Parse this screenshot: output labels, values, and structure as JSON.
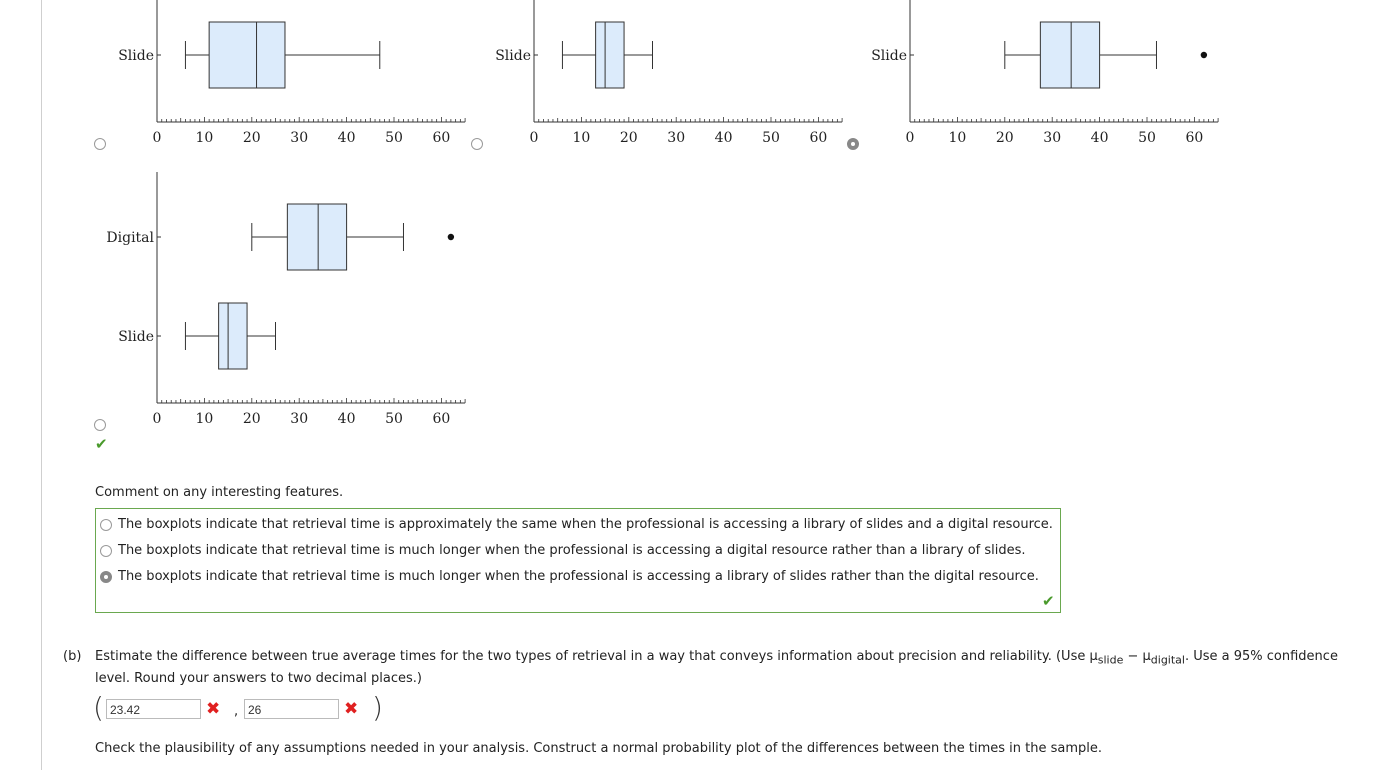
{
  "boxplots": {
    "axis_ticks": [
      "0",
      "10",
      "20",
      "30",
      "40",
      "50",
      "60"
    ],
    "plot_a": {
      "label": "Slide",
      "min": 6,
      "q1": 11,
      "median": 21,
      "q3": 27,
      "max": 47
    },
    "plot_b": {
      "label": "Slide",
      "min": 6,
      "q1": 13,
      "median": 15,
      "q3": 19,
      "max": 25
    },
    "plot_c": {
      "label": "Slide",
      "min": 20,
      "q1": 27.5,
      "median": 34,
      "q3": 40,
      "max": 52,
      "outlier": 62
    },
    "plot_d": {
      "digital": {
        "label": "Digital",
        "min": 20,
        "q1": 27.5,
        "median": 34,
        "q3": 40,
        "max": 52,
        "outlier": 62
      },
      "slide": {
        "label": "Slide",
        "min": 6,
        "q1": 13,
        "median": 15,
        "q3": 19,
        "max": 25
      }
    }
  },
  "question_a": {
    "prompt": "Comment on any interesting features.",
    "options": [
      "The boxplots indicate that retrieval time is approximately the same when the professional is accessing a library of slides and a digital resource.",
      "The boxplots indicate that retrieval time is much longer when the professional is accessing a digital resource rather than a library of slides.",
      "The boxplots indicate that retrieval time is much longer when the professional is accessing a library of slides rather than the digital resource."
    ],
    "selected_index": 2
  },
  "part_b": {
    "marker": "(b)",
    "prompt_1": "Estimate the difference between true average times for the two types of retrieval in a way that conveys information about precision and reliability. (Use μ",
    "sub_slide": "slide",
    "minus": " − μ",
    "sub_digital": "digital",
    "prompt_2": ". Use a 95% confidence",
    "prompt_line2": "level. Round your answers to two decimal places.)",
    "lower_value": "23.42",
    "upper_value": "26",
    "comma": ",",
    "open_paren": "(",
    "close_paren": ")"
  },
  "footer_text": "Check the plausibility of any assumptions needed in your analysis. Construct a normal probability plot of the differences between the times in the sample.",
  "colors": {
    "box_fill": "#dcebfb",
    "correct": "#4a9a2c",
    "wrong": "#e02020",
    "panel_border": "#6aa84f"
  }
}
